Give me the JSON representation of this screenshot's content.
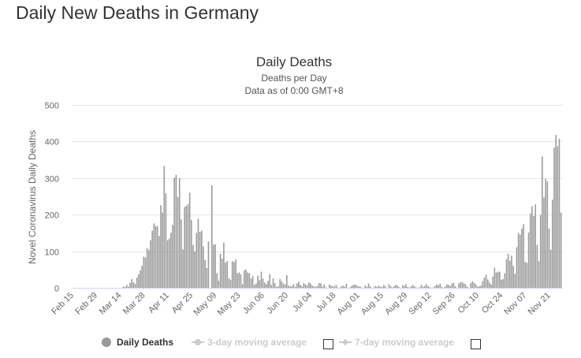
{
  "page": {
    "title": "Daily New Deaths in Germany"
  },
  "colors": {
    "bar": "#999999",
    "grid": "#e6e6e6",
    "axis_line": "#ccd6eb",
    "legend_inactive": "#cccccc"
  },
  "chart_data": {
    "type": "bar",
    "title": "Daily Deaths",
    "subtitle_lines": [
      "Deaths per Day",
      "Data as of 0:00 GMT+8"
    ],
    "ylabel": "Novel Coronavirus Daily Deaths",
    "xlabel": "",
    "ylim": [
      0,
      500
    ],
    "yticks": [
      "0",
      "100",
      "200",
      "300",
      "400",
      "500"
    ],
    "xticks": [
      "Feb 15",
      "Feb 29",
      "Mar 14",
      "Mar 28",
      "Apr 11",
      "Apr 25",
      "May 09",
      "May 23",
      "Jun 06",
      "Jun 20",
      "Jul 04",
      "Jul 18",
      "Aug 01",
      "Aug 15",
      "Aug 29",
      "Sep 12",
      "Sep 26",
      "Oct 10",
      "Oct 24",
      "Nov 07",
      "Nov 21"
    ],
    "x_range": [
      "Feb 15",
      "Nov 27"
    ],
    "grid": true,
    "legend_position": "bottom",
    "series": [
      {
        "name": "Daily Deaths",
        "visible": true,
        "values_by_month": [
          {
            "month": "Feb",
            "first_day": 15,
            "values": [
              0,
              0,
              0,
              0,
              0,
              0,
              0,
              0,
              0,
              0,
              0,
              0,
              0,
              0,
              0
            ]
          },
          {
            "month": "Mar",
            "first_day": 1,
            "values": [
              0,
              0,
              0,
              0,
              0,
              0,
              0,
              0,
              0,
              0,
              0,
              0,
              0,
              0,
              3,
              3,
              8,
              3,
              14,
              24,
              15,
              11,
              28,
              37,
              48,
              60,
              85,
              83,
              108,
              104,
              130
            ]
          },
          {
            "month": "Apr",
            "first_day": 1,
            "values": [
              156,
              176,
              169,
              169,
              142,
              226,
              206,
              333,
              258,
              130,
              135,
              151,
              172,
              301,
              309,
              248,
              300,
              187,
              105,
              221,
              224,
              229,
              260,
              185,
              117,
              100,
              150,
              189,
              153,
              156
            ]
          },
          {
            "month": "May",
            "first_day": 1,
            "values": [
              113,
              76,
              54,
              127,
              0,
              280,
              118,
              119,
              40,
              20,
              93,
              80,
              124,
              69,
              73,
              26,
              22,
              73,
              70,
              78,
              40,
              42,
              37,
              10,
              47,
              50,
              42,
              40,
              26,
              32,
              8
            ]
          },
          {
            "month": "Jun",
            "first_day": 1,
            "values": [
              12,
              33,
              21,
              44,
              25,
              14,
              10,
              19,
              37,
              8,
              26,
              13,
              3,
              4,
              24,
              18,
              12,
              9,
              35,
              6,
              4,
              5,
              10,
              3,
              12,
              17,
              8,
              4,
              13,
              9
            ]
          },
          {
            "month": "Jul",
            "first_day": 1,
            "values": [
              7,
              15,
              12,
              6,
              4,
              3,
              5,
              13,
              12,
              3,
              9,
              1,
              0,
              9,
              6,
              4,
              5,
              8,
              1,
              0,
              4,
              6,
              3,
              11,
              0,
              1,
              5,
              8,
              9,
              7,
              4
            ]
          },
          {
            "month": "Aug",
            "first_day": 1,
            "values": [
              4,
              1,
              0,
              6,
              3,
              12,
              4,
              0,
              1,
              5,
              3,
              6,
              3,
              2,
              8,
              3,
              0,
              10,
              5,
              1,
              4,
              8,
              6,
              2,
              0,
              7,
              5,
              10,
              2,
              1,
              4
            ]
          },
          {
            "month": "Sep",
            "first_day": 1,
            "values": [
              8,
              4,
              1,
              0,
              2,
              8,
              3,
              5,
              10,
              4,
              2,
              0,
              1,
              5,
              9,
              7,
              11,
              2,
              0,
              3,
              9,
              8,
              5,
              12,
              14,
              4,
              0,
              12,
              15,
              16
            ]
          },
          {
            "month": "Oct",
            "first_day": 1,
            "values": [
              12,
              10,
              3,
              0,
              13,
              18,
              14,
              10,
              3,
              5,
              6,
              18,
              28,
              36,
              23,
              15,
              9,
              31,
              55,
              42,
              44,
              44,
              22,
              24,
              40,
              78,
              93,
              74,
              88,
              60,
              38
            ]
          },
          {
            "month": "Nov",
            "first_day": 1,
            "values": [
              111,
              150,
              145,
              162,
              174,
              71,
              68,
              151,
              203,
              223,
              196,
              228,
              117,
              73,
              199,
              359,
              247,
              298,
              291,
              162,
              104,
              241,
              383,
              418,
              387,
              407,
              206
            ]
          }
        ]
      },
      {
        "name": "3-day moving average",
        "visible": false
      },
      {
        "name": "7-day moving average",
        "visible": false
      }
    ]
  },
  "legend": {
    "items": [
      {
        "label": "Daily Deaths",
        "icon": "circle",
        "active": true
      },
      {
        "label": "3-day moving average",
        "icon": "line-circle",
        "active": false,
        "checkbox_checked": false
      },
      {
        "label": "7-day moving average",
        "icon": "line-diamond",
        "active": false,
        "checkbox_checked": false
      }
    ]
  }
}
